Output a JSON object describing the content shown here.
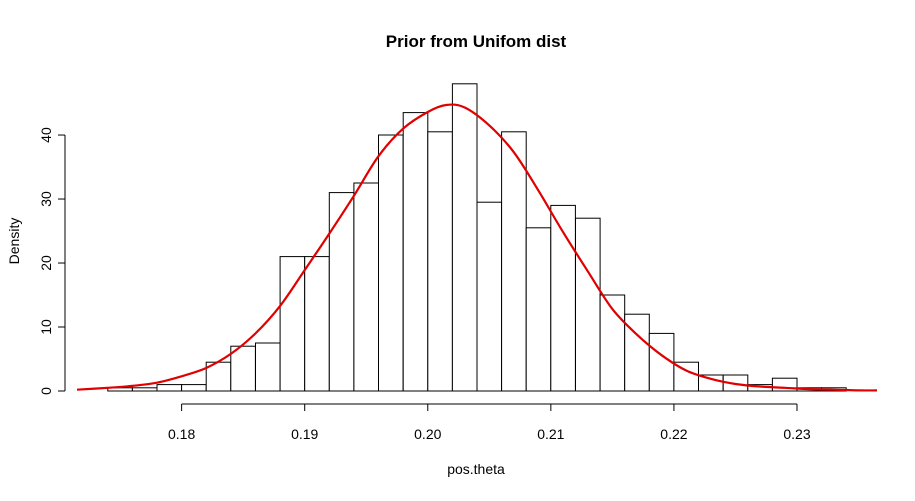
{
  "chart_data": {
    "type": "bar",
    "title": "Prior from Unifom dist",
    "xlabel": "pos.theta",
    "ylabel": "Density",
    "xlim": [
      0.1715,
      0.2365
    ],
    "ylim": [
      0,
      48.6
    ],
    "bin_width": 0.002,
    "x_ticks": [
      "0.18",
      "0.19",
      "0.20",
      "0.21",
      "0.22",
      "0.23"
    ],
    "x_tick_values": [
      0.18,
      0.19,
      0.2,
      0.21,
      0.22,
      0.23
    ],
    "y_ticks": [
      "0",
      "10",
      "20",
      "30",
      "40"
    ],
    "y_tick_values": [
      0,
      10,
      20,
      30,
      40
    ],
    "bins": [
      {
        "x0": 0.174,
        "x1": 0.176,
        "density": 0.5
      },
      {
        "x0": 0.176,
        "x1": 0.178,
        "density": 0.5
      },
      {
        "x0": 0.178,
        "x1": 0.18,
        "density": 1.0
      },
      {
        "x0": 0.18,
        "x1": 0.182,
        "density": 1.0
      },
      {
        "x0": 0.182,
        "x1": 0.184,
        "density": 4.5
      },
      {
        "x0": 0.184,
        "x1": 0.186,
        "density": 7.0
      },
      {
        "x0": 0.186,
        "x1": 0.188,
        "density": 7.5
      },
      {
        "x0": 0.188,
        "x1": 0.19,
        "density": 21.0
      },
      {
        "x0": 0.19,
        "x1": 0.192,
        "density": 21.0
      },
      {
        "x0": 0.192,
        "x1": 0.194,
        "density": 31.0
      },
      {
        "x0": 0.194,
        "x1": 0.196,
        "density": 32.5
      },
      {
        "x0": 0.196,
        "x1": 0.198,
        "density": 40.0
      },
      {
        "x0": 0.198,
        "x1": 0.2,
        "density": 43.5
      },
      {
        "x0": 0.2,
        "x1": 0.202,
        "density": 40.5
      },
      {
        "x0": 0.202,
        "x1": 0.204,
        "density": 48.0
      },
      {
        "x0": 0.204,
        "x1": 0.206,
        "density": 29.5
      },
      {
        "x0": 0.206,
        "x1": 0.208,
        "density": 40.5
      },
      {
        "x0": 0.208,
        "x1": 0.21,
        "density": 25.5
      },
      {
        "x0": 0.21,
        "x1": 0.212,
        "density": 29.0
      },
      {
        "x0": 0.212,
        "x1": 0.214,
        "density": 27.0
      },
      {
        "x0": 0.214,
        "x1": 0.216,
        "density": 15.0
      },
      {
        "x0": 0.216,
        "x1": 0.218,
        "density": 12.0
      },
      {
        "x0": 0.218,
        "x1": 0.22,
        "density": 9.0
      },
      {
        "x0": 0.22,
        "x1": 0.222,
        "density": 4.5
      },
      {
        "x0": 0.222,
        "x1": 0.224,
        "density": 2.5
      },
      {
        "x0": 0.224,
        "x1": 0.226,
        "density": 2.5
      },
      {
        "x0": 0.226,
        "x1": 0.228,
        "density": 1.0
      },
      {
        "x0": 0.228,
        "x1": 0.23,
        "density": 2.0
      },
      {
        "x0": 0.23,
        "x1": 0.232,
        "density": 0.5
      },
      {
        "x0": 0.232,
        "x1": 0.234,
        "density": 0.5
      }
    ],
    "density_curve": {
      "color": "#e00000",
      "x": [
        0.1715,
        0.174,
        0.176,
        0.178,
        0.18,
        0.182,
        0.184,
        0.186,
        0.188,
        0.19,
        0.192,
        0.194,
        0.196,
        0.198,
        0.2,
        0.2015,
        0.203,
        0.205,
        0.207,
        0.209,
        0.211,
        0.213,
        0.215,
        0.217,
        0.219,
        0.221,
        0.223,
        0.225,
        0.227,
        0.229,
        0.231,
        0.233,
        0.235,
        0.2365
      ],
      "y": [
        0.2,
        0.5,
        0.8,
        1.3,
        2.3,
        3.6,
        5.8,
        9.0,
        13.3,
        18.9,
        24.6,
        30.5,
        36.7,
        41.0,
        43.6,
        44.7,
        44.3,
        41.5,
        37.3,
        31.3,
        24.8,
        18.7,
        12.8,
        8.8,
        5.6,
        3.2,
        1.9,
        1.1,
        0.7,
        0.5,
        0.3,
        0.2,
        0.1,
        0.1
      ]
    },
    "grid": false,
    "legend": "none"
  }
}
